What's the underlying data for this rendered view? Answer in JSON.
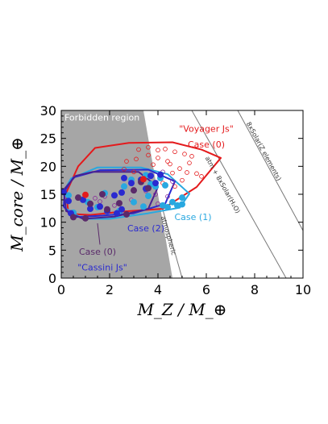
{
  "chart_data": {
    "type": "scatter",
    "xlabel": "M_Z / M_⊕",
    "ylabel": "M_core / M_⊕",
    "xlim": [
      0,
      10
    ],
    "ylim": [
      0,
      30
    ],
    "x_ticks": [
      "0",
      "2",
      "4",
      "6",
      "8",
      "10"
    ],
    "y_ticks": [
      "0",
      "5",
      "10",
      "15",
      "20",
      "25",
      "30"
    ],
    "forbidden_region": {
      "label": "Forbidden region",
      "polygon": [
        [
          0,
          0
        ],
        [
          0,
          30
        ],
        [
          3.4,
          30
        ],
        [
          4.6,
          0
        ]
      ]
    },
    "reference_lines": [
      {
        "label": "atmospheric",
        "points": [
          [
            4.15,
            13
          ],
          [
            5.0,
            0
          ]
        ]
      },
      {
        "label": "atm + 8xSolar(H₂O)",
        "points": [
          [
            5.4,
            30
          ],
          [
            9.3,
            0
          ]
        ]
      },
      {
        "label": "8xSolar(Z elements)",
        "points": [
          [
            7.3,
            30
          ],
          [
            10,
            8.5
          ]
        ]
      }
    ],
    "annotations": [
      {
        "text": "\"Voyager Js\"",
        "color": "#e41a1c"
      },
      {
        "text": "Case (0)",
        "color": "#e41a1c"
      },
      {
        "text": "Case (1)",
        "color": "#29a8e0"
      },
      {
        "text": "Case (2)",
        "color": "#2a2ad0"
      },
      {
        "text": "Case (0)",
        "color": "#5a2a6a"
      },
      {
        "text": "\"Cassini Js\"",
        "color": "#2a2ad0"
      }
    ],
    "series": [
      {
        "color": "#e41a1c",
        "kind": "outline",
        "points": [
          [
            0.2,
            15.2
          ],
          [
            0.7,
            20.0
          ],
          [
            1.4,
            23.3
          ],
          [
            2.8,
            24.2
          ],
          [
            4.6,
            24.3
          ],
          [
            5.8,
            23.0
          ],
          [
            6.6,
            21.5
          ],
          [
            5.6,
            16.3
          ],
          [
            4.2,
            12.4
          ],
          [
            2.5,
            11.9
          ],
          [
            1.2,
            11.3
          ],
          [
            0.3,
            11.5
          ]
        ]
      },
      {
        "color": "#29a8e0",
        "kind": "outline",
        "points": [
          [
            0.1,
            15.5
          ],
          [
            0.4,
            17.8
          ],
          [
            1.5,
            19.8
          ],
          [
            3.3,
            19.8
          ],
          [
            4.4,
            18.6
          ],
          [
            5.3,
            15.1
          ],
          [
            4.9,
            12.6
          ],
          [
            3.6,
            11.6
          ],
          [
            2.0,
            10.6
          ],
          [
            0.9,
            10.6
          ],
          [
            0.2,
            12.4
          ]
        ]
      },
      {
        "color": "#2a2ad0",
        "kind": "outline",
        "points": [
          [
            0.15,
            15.6
          ],
          [
            0.5,
            18.0
          ],
          [
            1.6,
            19.3
          ],
          [
            3.6,
            19.4
          ],
          [
            4.7,
            17.3
          ],
          [
            4.3,
            13.3
          ],
          [
            3.0,
            11.6
          ],
          [
            1.4,
            11.1
          ],
          [
            0.5,
            10.9
          ],
          [
            0.1,
            12.8
          ]
        ]
      },
      {
        "color": "#4a2090",
        "kind": "outline",
        "points": [
          [
            0.1,
            15.8
          ],
          [
            0.6,
            18.3
          ],
          [
            1.3,
            19.0
          ],
          [
            3.2,
            19.0
          ],
          [
            4.0,
            16.3
          ],
          [
            3.6,
            12.4
          ],
          [
            2.2,
            11.0
          ],
          [
            0.9,
            10.6
          ],
          [
            0.2,
            12.0
          ]
        ]
      },
      {
        "color": "#29a8e0",
        "kind": "filled",
        "points": [
          [
            0.3,
            14.8
          ],
          [
            0.5,
            11.7
          ],
          [
            1.1,
            13.6
          ],
          [
            1.5,
            12.7
          ],
          [
            2.4,
            12.0
          ],
          [
            3.0,
            13.6
          ],
          [
            3.6,
            14.7
          ],
          [
            3.7,
            16.8
          ],
          [
            4.2,
            13.0
          ],
          [
            4.4,
            12.7
          ],
          [
            4.6,
            13.6
          ],
          [
            3.4,
            12.8
          ],
          [
            4.8,
            13.0
          ],
          [
            5.0,
            13.2
          ],
          [
            3.9,
            16.4
          ],
          [
            4.1,
            17.9
          ],
          [
            4.3,
            16.6
          ],
          [
            1.8,
            15.2
          ],
          [
            2.6,
            16.4
          ],
          [
            5.0,
            14.4
          ],
          [
            2.9,
            17.6
          ],
          [
            3.5,
            18.4
          ]
        ]
      },
      {
        "color": "#2a2ad0",
        "kind": "filled",
        "points": [
          [
            0.1,
            15.4
          ],
          [
            0.3,
            13.8
          ],
          [
            0.4,
            11.6
          ],
          [
            0.9,
            14.0
          ],
          [
            1.2,
            12.4
          ],
          [
            1.6,
            12.8
          ],
          [
            2.3,
            11.6
          ],
          [
            2.5,
            12.3
          ],
          [
            2.2,
            14.8
          ],
          [
            2.5,
            15.3
          ],
          [
            2.9,
            17.0
          ],
          [
            3.3,
            17.6
          ],
          [
            3.5,
            16.0
          ],
          [
            3.7,
            18.3
          ],
          [
            3.9,
            17.0
          ],
          [
            4.1,
            18.5
          ],
          [
            1.9,
            12.0
          ],
          [
            2.6,
            17.9
          ]
        ]
      },
      {
        "color": "#5a2a6a",
        "kind": "filled",
        "points": [
          [
            0.7,
            14.4
          ],
          [
            1.2,
            13.3
          ],
          [
            1.7,
            15.0
          ],
          [
            1.9,
            12.3
          ],
          [
            2.4,
            13.4
          ],
          [
            2.7,
            11.4
          ],
          [
            3.0,
            15.7
          ],
          [
            3.3,
            17.2
          ],
          [
            3.6,
            16.1
          ],
          [
            0.5,
            10.9
          ],
          [
            1.0,
            10.7
          ]
        ]
      },
      {
        "color": "#e41a1c",
        "kind": "filled",
        "points": [
          [
            1.0,
            14.9
          ],
          [
            3.4,
            17.7
          ]
        ]
      },
      {
        "color": "#e41a1c",
        "kind": "open",
        "points": [
          [
            3.2,
            23.0
          ],
          [
            3.6,
            23.4
          ],
          [
            4.0,
            22.9
          ],
          [
            4.3,
            23.1
          ],
          [
            4.7,
            22.6
          ],
          [
            5.1,
            22.2
          ],
          [
            5.4,
            21.8
          ],
          [
            3.6,
            22.0
          ],
          [
            4.5,
            20.4
          ],
          [
            4.9,
            19.6
          ],
          [
            5.3,
            20.6
          ],
          [
            4.0,
            21.5
          ],
          [
            3.1,
            21.3
          ],
          [
            2.7,
            20.9
          ],
          [
            5.6,
            18.7
          ],
          [
            5.8,
            18.2
          ],
          [
            5.0,
            17.5
          ],
          [
            4.7,
            16.4
          ],
          [
            4.2,
            17.0
          ],
          [
            3.8,
            20.3
          ],
          [
            4.4,
            20.9
          ],
          [
            4.6,
            18.8
          ],
          [
            5.2,
            18.9
          ],
          [
            2.6,
            19.5
          ],
          [
            3.0,
            19.0
          ]
        ]
      },
      {
        "color": "#8a2a9a",
        "kind": "open",
        "points": [
          [
            4.2,
            19.0
          ],
          [
            4.6,
            17.3
          ],
          [
            4.4,
            14.6
          ],
          [
            4.1,
            18.0
          ],
          [
            3.9,
            15.0
          ],
          [
            4.0,
            13.3
          ],
          [
            2.2,
            13.0
          ],
          [
            1.6,
            13.7
          ],
          [
            1.4,
            14.3
          ],
          [
            1.8,
            14.6
          ],
          [
            2.9,
            14.0
          ],
          [
            3.5,
            15.6
          ]
        ]
      }
    ]
  }
}
